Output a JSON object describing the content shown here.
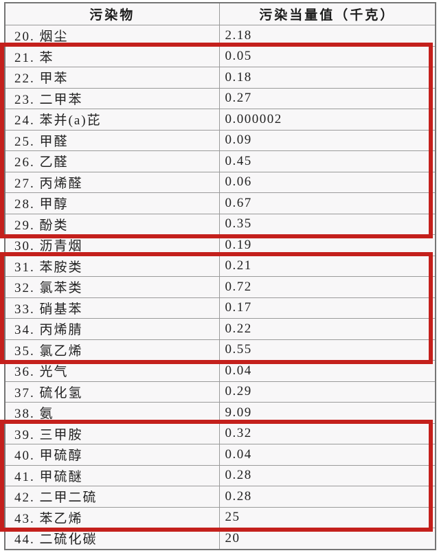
{
  "table": {
    "headers": [
      {
        "label": "污染物"
      },
      {
        "label": "污染当量值（千克）"
      }
    ],
    "rows": [
      {
        "label": "20. 烟尘",
        "value": "2.18"
      },
      {
        "label": "21. 苯",
        "value": "0.05"
      },
      {
        "label": "22. 甲苯",
        "value": "0.18"
      },
      {
        "label": "23. 二甲苯",
        "value": "0.27"
      },
      {
        "label": "24. 苯并(a)芘",
        "value": "0.000002"
      },
      {
        "label": "25. 甲醛",
        "value": "0.09"
      },
      {
        "label": "26. 乙醛",
        "value": "0.45"
      },
      {
        "label": "27. 丙烯醛",
        "value": "0.06"
      },
      {
        "label": "28. 甲醇",
        "value": "0.67"
      },
      {
        "label": "29. 酚类",
        "value": "0.35"
      },
      {
        "label": "30. 沥青烟",
        "value": "0.19"
      },
      {
        "label": "31. 苯胺类",
        "value": "0.21"
      },
      {
        "label": "32. 氯苯类",
        "value": "0.72"
      },
      {
        "label": "33. 硝基苯",
        "value": "0.17"
      },
      {
        "label": "34. 丙烯腈",
        "value": "0.22"
      },
      {
        "label": "35. 氯乙烯",
        "value": "0.55"
      },
      {
        "label": "36. 光气",
        "value": "0.04"
      },
      {
        "label": "37. 硫化氢",
        "value": "0.29"
      },
      {
        "label": "38. 氨",
        "value": "9.09"
      },
      {
        "label": "39. 三甲胺",
        "value": "0.32"
      },
      {
        "label": "40. 甲硫醇",
        "value": "0.04"
      },
      {
        "label": "41. 甲硫醚",
        "value": "0.28"
      },
      {
        "label": "42. 二甲二硫",
        "value": "0.28"
      },
      {
        "label": "43. 苯乙烯",
        "value": "25"
      },
      {
        "label": "44. 二硫化碳",
        "value": "20"
      }
    ],
    "highlight_boxes": [
      {
        "first_row_label": "21. 苯",
        "last_row_label": "29. 酚类",
        "start_index": 1,
        "end_index": 9
      },
      {
        "first_row_label": "31. 苯胺类",
        "last_row_label": "35. 氯乙烯",
        "start_index": 11,
        "end_index": 15
      },
      {
        "first_row_label": "39. 三甲胺",
        "last_row_label": "43. 苯乙烯",
        "start_index": 19,
        "end_index": 23
      }
    ]
  },
  "colors": {
    "highlight_red": "#c4201c",
    "outer_border": "#757575",
    "inner_border": "#9a9a9a",
    "cell_background": "#f8f7f8",
    "text": "#222222"
  }
}
